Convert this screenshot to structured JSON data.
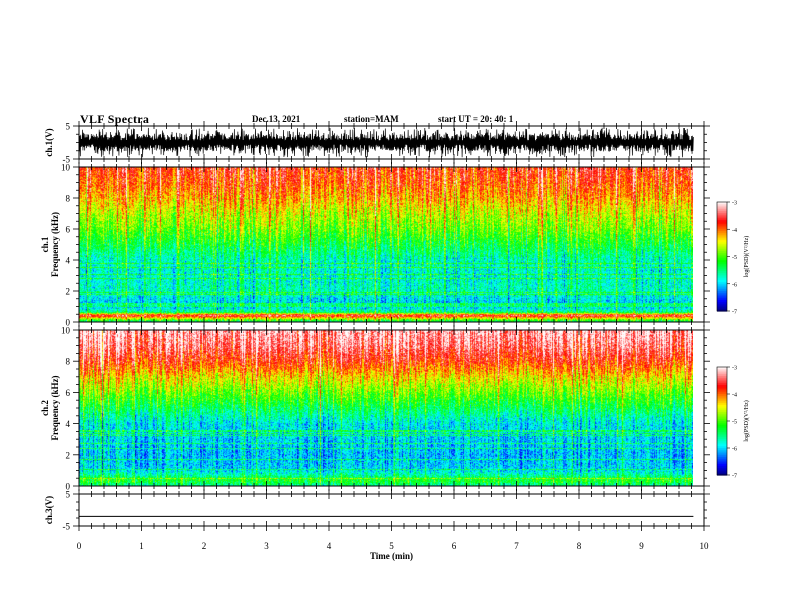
{
  "header": {
    "title": "VLF Spectra",
    "date": "Dec.13, 2021",
    "station": "station=MAM",
    "start": "start  UT =   20: 40: 1"
  },
  "chart_data": [
    {
      "type": "line",
      "panel": "ch1-waveform",
      "ylabel": "ch.1(V)",
      "ylim": [
        -5,
        5
      ],
      "yticks": [
        "5",
        "-5"
      ],
      "xlim": [
        0,
        10
      ],
      "description_values": {
        "x": [
          0,
          9.83
        ],
        "amplitude_range": [
          -4.5,
          4.5
        ]
      }
    },
    {
      "type": "heatmap",
      "panel": "ch1-spectrogram",
      "ylabel": "ch.1\nFrequency (kHz)",
      "ylim": [
        0,
        10
      ],
      "yticks": [
        "0",
        "2",
        "4",
        "6",
        "8",
        "10"
      ],
      "xlim": [
        0,
        10
      ],
      "data_x_end": 9.83,
      "colorbar": {
        "label": "log(PSD)(V²/Hz)",
        "range": [
          -7,
          -3
        ],
        "ticks": [
          "-3",
          "-4",
          "-5",
          "-6",
          "-7"
        ]
      },
      "psd_profile_by_freq_khz": {
        "freq": [
          0,
          0.4,
          0.6,
          1,
          2,
          3,
          4,
          5,
          6,
          7,
          8,
          9,
          10
        ],
        "log_psd": [
          -5.5,
          -3.5,
          -5.5,
          -6.1,
          -5.7,
          -5.8,
          -5.7,
          -5.3,
          -4.9,
          -4.6,
          -4.2,
          -3.9,
          -3.7
        ]
      }
    },
    {
      "type": "heatmap",
      "panel": "ch2-spectrogram",
      "ylabel": "ch.2\nFrequency (kHz)",
      "ylim": [
        0,
        10
      ],
      "yticks": [
        "0",
        "2",
        "4",
        "6",
        "8",
        "10"
      ],
      "xlim": [
        0,
        10
      ],
      "data_x_end": 9.83,
      "colorbar": {
        "label": "log(PSD)(V²/Hz)",
        "range": [
          -7,
          -3
        ],
        "ticks": [
          "-3",
          "-4",
          "-5",
          "-6",
          "-7"
        ]
      },
      "psd_profile_by_freq_khz": {
        "freq": [
          0,
          0.3,
          1,
          2,
          3,
          4,
          5,
          6,
          7,
          8,
          9,
          10
        ],
        "log_psd": [
          -5.6,
          -5.2,
          -6.0,
          -6.1,
          -6.0,
          -5.9,
          -5.4,
          -4.9,
          -4.4,
          -3.8,
          -3.4,
          -3.2
        ]
      }
    },
    {
      "type": "line",
      "panel": "ch3-waveform",
      "ylabel": "ch.3(V)",
      "ylim": [
        -5,
        5
      ],
      "yticks": [
        "5",
        "-5"
      ],
      "xlim": [
        0,
        10
      ],
      "xlabel": "Time (min)",
      "xticks": [
        "0",
        "1",
        "2",
        "3",
        "4",
        "5",
        "6",
        "7",
        "8",
        "9",
        "10"
      ],
      "values": {
        "x": [
          0,
          9.83
        ],
        "y": [
          -2.0,
          -2.0
        ]
      }
    }
  ],
  "colors": {
    "colormap": [
      "#000080",
      "#0000ff",
      "#0080ff",
      "#00ffff",
      "#00ff80",
      "#00ff00",
      "#80ff00",
      "#ffff00",
      "#ff8000",
      "#ff0000",
      "#ff8080",
      "#ffffff"
    ]
  }
}
